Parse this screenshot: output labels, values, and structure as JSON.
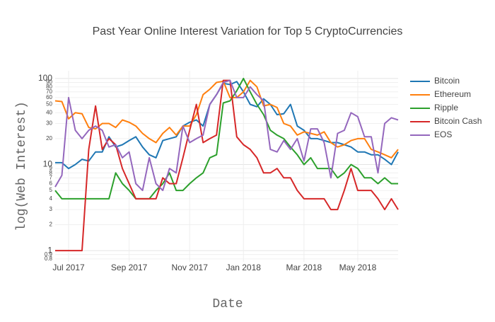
{
  "chart_data": {
    "type": "line",
    "title": "Past Year Online Interest Variation for Top 5 CryptoCurrencies",
    "x_label": "Date",
    "y_label": "log(Web Interest)",
    "y_log": true,
    "grid": true,
    "legend": "right",
    "categories": [
      null,
      null,
      "Jul 2017",
      null,
      null,
      null,
      null,
      null,
      null,
      null,
      null,
      "Sep 2017",
      null,
      null,
      null,
      null,
      null,
      null,
      null,
      null,
      "Nov 2017",
      null,
      null,
      null,
      null,
      null,
      null,
      null,
      "Jan 2018",
      null,
      null,
      null,
      null,
      null,
      null,
      null,
      null,
      "Mar 2018",
      null,
      null,
      null,
      null,
      null,
      null,
      null,
      "May 2018",
      null,
      null,
      null,
      null,
      null,
      null
    ],
    "ylim": [
      0.74,
      123
    ],
    "yticks": [
      0.8,
      0.9,
      1,
      2,
      3,
      4,
      5,
      6,
      7,
      8,
      9,
      10,
      20,
      30,
      40,
      50,
      60,
      70,
      80,
      90,
      100
    ],
    "series": [
      {
        "name": "Bitcoin",
        "color": "#1f77b4",
        "values": [
          10.5,
          10.5,
          9,
          10,
          11.5,
          11,
          14,
          14,
          21,
          16,
          17,
          19,
          21,
          16,
          13,
          12,
          19,
          20,
          21,
          28,
          31,
          33,
          28,
          50,
          65,
          88,
          85,
          92,
          70,
          50,
          47,
          58,
          50,
          38,
          39,
          50,
          28,
          25,
          20,
          20,
          19,
          18,
          18,
          17,
          16,
          14,
          14,
          13,
          13,
          11.5,
          10,
          14
        ]
      },
      {
        "name": "Ethereum",
        "color": "#ff7f0e",
        "values": [
          55,
          54,
          34,
          40,
          39,
          27,
          26,
          30,
          30,
          27,
          33,
          31,
          28,
          23,
          20,
          18,
          23,
          27,
          22,
          28,
          28,
          38,
          65,
          75,
          90,
          93,
          60,
          60,
          70,
          95,
          80,
          48,
          50,
          46,
          30,
          28,
          22,
          24,
          23,
          22,
          24,
          18,
          16,
          17,
          19,
          20,
          20,
          15,
          14,
          13,
          12,
          15
        ]
      },
      {
        "name": "Ripple",
        "color": "#2ca02c",
        "values": [
          5,
          4,
          4,
          4,
          4,
          4,
          4,
          4,
          4,
          8,
          6,
          5,
          4,
          4,
          4,
          5,
          6,
          8,
          5,
          5,
          6,
          7,
          8,
          12,
          13,
          52,
          55,
          72,
          100,
          70,
          50,
          38,
          25,
          22,
          20,
          16,
          13,
          10,
          12,
          9,
          9,
          9,
          7,
          8,
          10,
          9,
          7,
          7,
          6,
          7,
          6,
          6
        ]
      },
      {
        "name": "Bitcoin Cash",
        "color": "#d62728",
        "values": [
          1,
          1,
          1,
          1,
          1,
          15,
          48,
          15,
          20,
          17,
          9,
          6,
          4,
          4,
          4,
          4,
          7,
          6,
          6,
          12,
          25,
          50,
          18,
          20,
          22,
          95,
          95,
          21,
          17,
          15,
          12,
          8,
          8,
          9,
          7,
          7,
          5,
          4,
          4,
          4,
          4,
          3,
          3,
          5,
          9,
          5,
          5,
          5,
          4,
          3,
          4,
          3
        ]
      },
      {
        "name": "EOS",
        "color": "#9467bd",
        "values": [
          5.5,
          7.5,
          60,
          25,
          20,
          25,
          28,
          25,
          16,
          17,
          12,
          14,
          6,
          5,
          12,
          6,
          5,
          9,
          8,
          28,
          18,
          20,
          22,
          50,
          65,
          90,
          95,
          60,
          60,
          80,
          65,
          55,
          15,
          14,
          19,
          15,
          20,
          11,
          26,
          26,
          18,
          7,
          23,
          25,
          40,
          36,
          21,
          21,
          8,
          30,
          35,
          33
        ]
      }
    ]
  }
}
